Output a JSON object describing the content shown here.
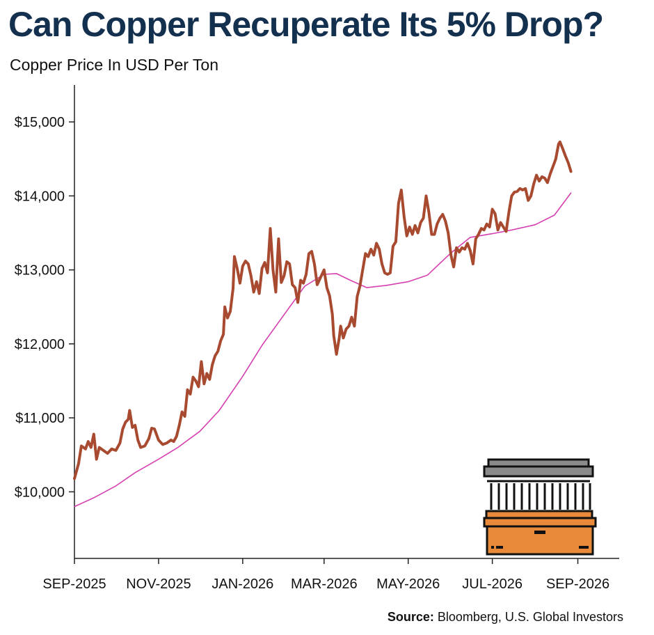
{
  "title": "Can Copper Recuperate Its 5% Drop?",
  "subtitle": "Copper Price In USD Per Ton",
  "source": {
    "label": "Source:",
    "text": "Bloomberg, U.S. Global Investors"
  },
  "colors": {
    "title": "#14304f",
    "price": "#a84a30",
    "moving_average": "#d63fb0",
    "icon_orange": "#e88a3a",
    "icon_gray": "#8a8a8a"
  },
  "icon": "warehouse-icon",
  "chart_data": {
    "type": "line",
    "xlabel": "",
    "ylabel": "",
    "ylim": [
      9100,
      15500
    ],
    "xlim": [
      "2025-09-01",
      "2026-10-01"
    ],
    "y_ticks": [
      10000,
      11000,
      12000,
      13000,
      14000,
      15000
    ],
    "y_tick_labels": [
      "$10,000",
      "$11,000",
      "$12,000",
      "$13,000",
      "$14,000",
      "$15,000"
    ],
    "x_ticks": [
      "2025-09-01",
      "2025-11-01",
      "2026-01-01",
      "2026-03-01",
      "2026-05-01",
      "2026-07-01",
      "2026-09-01"
    ],
    "x_tick_labels": [
      "SEP-2025",
      "NOV-2025",
      "JAN-2026",
      "MAR-2026",
      "MAY-2026",
      "JUL-2026",
      "SEP-2026"
    ],
    "grid": false,
    "series": [
      {
        "color": "#a84a30",
        "points": [
          [
            "2025-09-01",
            10180
          ],
          [
            "2025-09-04",
            10380
          ],
          [
            "2025-09-06",
            10620
          ],
          [
            "2025-09-09",
            10580
          ],
          [
            "2025-09-11",
            10680
          ],
          [
            "2025-09-13",
            10600
          ],
          [
            "2025-09-15",
            10780
          ],
          [
            "2025-09-17",
            10440
          ],
          [
            "2025-09-19",
            10600
          ],
          [
            "2025-09-22",
            10560
          ],
          [
            "2025-09-25",
            10520
          ],
          [
            "2025-09-28",
            10580
          ],
          [
            "2025-10-01",
            10560
          ],
          [
            "2025-10-04",
            10660
          ],
          [
            "2025-10-06",
            10850
          ],
          [
            "2025-10-08",
            10940
          ],
          [
            "2025-10-10",
            10980
          ],
          [
            "2025-10-11",
            11100
          ],
          [
            "2025-10-13",
            10870
          ],
          [
            "2025-10-15",
            10900
          ],
          [
            "2025-10-17",
            10700
          ],
          [
            "2025-10-19",
            10600
          ],
          [
            "2025-10-22",
            10620
          ],
          [
            "2025-10-25",
            10720
          ],
          [
            "2025-10-27",
            10860
          ],
          [
            "2025-10-29",
            10850
          ],
          [
            "2025-11-01",
            10700
          ],
          [
            "2025-11-04",
            10640
          ],
          [
            "2025-11-07",
            10660
          ],
          [
            "2025-11-10",
            10700
          ],
          [
            "2025-11-12",
            10680
          ],
          [
            "2025-11-14",
            10750
          ],
          [
            "2025-11-16",
            10900
          ],
          [
            "2025-11-18",
            11080
          ],
          [
            "2025-11-20",
            11020
          ],
          [
            "2025-11-22",
            11380
          ],
          [
            "2025-11-24",
            11320
          ],
          [
            "2025-11-26",
            11550
          ],
          [
            "2025-11-28",
            11500
          ],
          [
            "2025-11-30",
            11420
          ],
          [
            "2025-12-02",
            11760
          ],
          [
            "2025-12-04",
            11460
          ],
          [
            "2025-12-06",
            11600
          ],
          [
            "2025-12-08",
            11520
          ],
          [
            "2025-12-10",
            11720
          ],
          [
            "2025-12-12",
            11840
          ],
          [
            "2025-12-14",
            11900
          ],
          [
            "2025-12-16",
            12040
          ],
          [
            "2025-12-18",
            12130
          ],
          [
            "2025-12-19",
            12500
          ],
          [
            "2025-12-21",
            12350
          ],
          [
            "2025-12-23",
            12440
          ],
          [
            "2025-12-25",
            12750
          ],
          [
            "2025-12-26",
            13180
          ],
          [
            "2025-12-28",
            13020
          ],
          [
            "2025-12-30",
            12820
          ],
          [
            "2026-01-01",
            13050
          ],
          [
            "2026-01-03",
            13120
          ],
          [
            "2026-01-05",
            13080
          ],
          [
            "2026-01-07",
            12920
          ],
          [
            "2026-01-09",
            12700
          ],
          [
            "2026-01-11",
            12840
          ],
          [
            "2026-01-13",
            12680
          ],
          [
            "2026-01-15",
            13020
          ],
          [
            "2026-01-17",
            13100
          ],
          [
            "2026-01-19",
            12960
          ],
          [
            "2026-01-21",
            13560
          ],
          [
            "2026-01-23",
            13000
          ],
          [
            "2026-01-25",
            12700
          ],
          [
            "2026-01-27",
            13420
          ],
          [
            "2026-01-29",
            12830
          ],
          [
            "2026-01-31",
            12920
          ],
          [
            "2026-02-02",
            13110
          ],
          [
            "2026-02-04",
            13080
          ],
          [
            "2026-02-06",
            12800
          ],
          [
            "2026-02-08",
            12760
          ],
          [
            "2026-02-10",
            12560
          ],
          [
            "2026-02-12",
            12860
          ],
          [
            "2026-02-14",
            12820
          ],
          [
            "2026-02-16",
            12940
          ],
          [
            "2026-02-18",
            13220
          ],
          [
            "2026-02-20",
            13250
          ],
          [
            "2026-02-22",
            13080
          ],
          [
            "2026-02-24",
            12800
          ],
          [
            "2026-02-26",
            12880
          ],
          [
            "2026-03-01",
            13000
          ],
          [
            "2026-03-03",
            12760
          ],
          [
            "2026-03-05",
            12650
          ],
          [
            "2026-03-07",
            12400
          ],
          [
            "2026-03-08",
            12110
          ],
          [
            "2026-03-10",
            11860
          ],
          [
            "2026-03-12",
            12080
          ],
          [
            "2026-03-13",
            12240
          ],
          [
            "2026-03-15",
            12080
          ],
          [
            "2026-03-17",
            12200
          ],
          [
            "2026-03-19",
            12240
          ],
          [
            "2026-03-21",
            12360
          ],
          [
            "2026-03-23",
            12240
          ],
          [
            "2026-03-25",
            12640
          ],
          [
            "2026-03-27",
            12780
          ],
          [
            "2026-03-29",
            13000
          ],
          [
            "2026-03-31",
            13220
          ],
          [
            "2026-04-02",
            13180
          ],
          [
            "2026-04-04",
            13280
          ],
          [
            "2026-04-06",
            13200
          ],
          [
            "2026-04-08",
            13360
          ],
          [
            "2026-04-10",
            13280
          ],
          [
            "2026-04-12",
            13080
          ],
          [
            "2026-04-14",
            12960
          ],
          [
            "2026-04-16",
            12940
          ],
          [
            "2026-04-18",
            12960
          ],
          [
            "2026-04-20",
            13320
          ],
          [
            "2026-04-22",
            13380
          ],
          [
            "2026-04-24",
            13900
          ],
          [
            "2026-04-26",
            14080
          ],
          [
            "2026-04-28",
            13720
          ],
          [
            "2026-04-30",
            13460
          ],
          [
            "2026-05-02",
            13580
          ],
          [
            "2026-05-04",
            13480
          ],
          [
            "2026-05-06",
            13600
          ],
          [
            "2026-05-08",
            13500
          ],
          [
            "2026-05-10",
            13640
          ],
          [
            "2026-05-12",
            13700
          ],
          [
            "2026-05-14",
            14000
          ],
          [
            "2026-05-16",
            13780
          ],
          [
            "2026-05-18",
            13480
          ],
          [
            "2026-05-20",
            13480
          ],
          [
            "2026-05-22",
            13620
          ],
          [
            "2026-05-24",
            13700
          ],
          [
            "2026-05-26",
            13750
          ],
          [
            "2026-05-28",
            13660
          ],
          [
            "2026-05-30",
            13500
          ],
          [
            "2026-06-01",
            13200
          ],
          [
            "2026-06-03",
            13040
          ],
          [
            "2026-06-05",
            13300
          ],
          [
            "2026-06-07",
            13240
          ],
          [
            "2026-06-09",
            13300
          ],
          [
            "2026-06-11",
            13280
          ],
          [
            "2026-06-13",
            13360
          ],
          [
            "2026-06-15",
            13260
          ],
          [
            "2026-06-17",
            13080
          ],
          [
            "2026-06-19",
            13420
          ],
          [
            "2026-06-21",
            13480
          ],
          [
            "2026-06-23",
            13560
          ],
          [
            "2026-06-25",
            13540
          ],
          [
            "2026-06-27",
            13620
          ],
          [
            "2026-06-29",
            13580
          ],
          [
            "2026-07-01",
            13820
          ],
          [
            "2026-07-03",
            13760
          ],
          [
            "2026-07-05",
            13540
          ],
          [
            "2026-07-07",
            13640
          ],
          [
            "2026-07-09",
            13580
          ],
          [
            "2026-07-11",
            13520
          ],
          [
            "2026-07-13",
            13780
          ],
          [
            "2026-07-15",
            14000
          ],
          [
            "2026-07-17",
            14050
          ],
          [
            "2026-07-19",
            14060
          ],
          [
            "2026-07-21",
            14100
          ],
          [
            "2026-07-23",
            14080
          ],
          [
            "2026-07-25",
            14100
          ],
          [
            "2026-07-27",
            13940
          ],
          [
            "2026-07-29",
            14000
          ],
          [
            "2026-07-31",
            14160
          ],
          [
            "2026-08-02",
            14280
          ],
          [
            "2026-08-04",
            14200
          ],
          [
            "2026-08-06",
            14260
          ],
          [
            "2026-08-08",
            14240
          ],
          [
            "2026-08-10",
            14180
          ],
          [
            "2026-08-12",
            14300
          ],
          [
            "2026-08-14",
            14400
          ],
          [
            "2026-08-16",
            14500
          ],
          [
            "2026-08-18",
            14700
          ],
          [
            "2026-08-19",
            14730
          ],
          [
            "2026-08-21",
            14640
          ],
          [
            "2026-08-23",
            14540
          ],
          [
            "2026-08-25",
            14450
          ],
          [
            "2026-08-27",
            14330
          ]
        ]
      },
      {
        "color": "#d63fb0",
        "points": [
          [
            "2025-09-01",
            9800
          ],
          [
            "2025-09-15",
            9920
          ],
          [
            "2025-10-01",
            10080
          ],
          [
            "2025-10-15",
            10260
          ],
          [
            "2025-11-01",
            10440
          ],
          [
            "2025-11-15",
            10600
          ],
          [
            "2025-12-01",
            10820
          ],
          [
            "2025-12-15",
            11100
          ],
          [
            "2026-01-01",
            11560
          ],
          [
            "2026-01-15",
            11980
          ],
          [
            "2026-02-01",
            12420
          ],
          [
            "2026-02-15",
            12780
          ],
          [
            "2026-03-01",
            12940
          ],
          [
            "2026-03-10",
            12950
          ],
          [
            "2026-03-20",
            12860
          ],
          [
            "2026-04-01",
            12760
          ],
          [
            "2026-04-15",
            12790
          ],
          [
            "2026-05-01",
            12840
          ],
          [
            "2026-05-15",
            12930
          ],
          [
            "2026-06-01",
            13230
          ],
          [
            "2026-06-15",
            13440
          ],
          [
            "2026-07-01",
            13490
          ],
          [
            "2026-07-15",
            13540
          ],
          [
            "2026-08-01",
            13610
          ],
          [
            "2026-08-15",
            13740
          ],
          [
            "2026-08-27",
            14040
          ]
        ]
      }
    ]
  }
}
